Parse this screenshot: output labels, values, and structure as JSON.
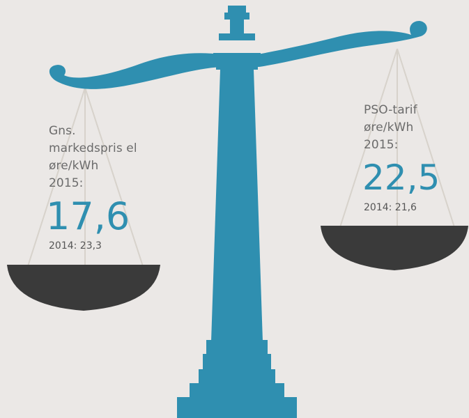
{
  "left_pan": {
    "line1": "Gns.",
    "line2": "markedspris el",
    "line3": "øre/kWh",
    "line4": "2015:",
    "value_2015": "17,6",
    "prev": "2014: 23,3"
  },
  "right_pan": {
    "line1": "PSO-tarif",
    "line2": "øre/kWh",
    "line3": "2015:",
    "value_2015": "22,5",
    "prev": "2014: 21,6"
  },
  "colors": {
    "background": "#ebe8e6",
    "scale": "#2f8fb0",
    "pan": "#3a3a3a",
    "strings": "#d7d2cb",
    "value": "#2f8fb0",
    "label": "#6b6b6b"
  }
}
